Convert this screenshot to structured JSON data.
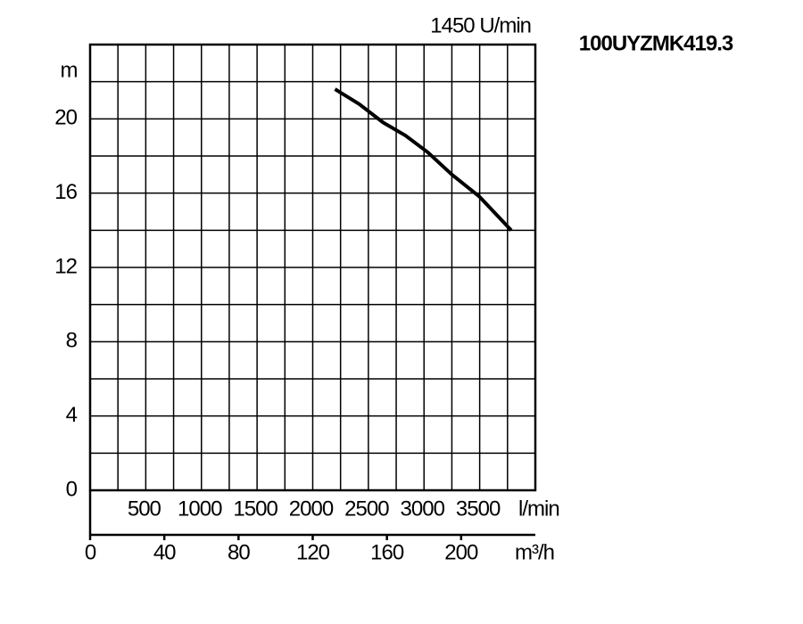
{
  "chart_data": {
    "type": "line",
    "title": "100UYZMK419.3",
    "subtitle": "1450 U/min",
    "y_label": "m",
    "x_label": "m³/h",
    "x2_label": "l/min",
    "x": [
      132,
      145,
      158,
      170,
      182,
      195,
      210,
      227
    ],
    "values": [
      21.6,
      20.8,
      19.8,
      19.1,
      18.2,
      17.0,
      15.8,
      14.0
    ],
    "color": "#000000",
    "xlim": [
      0,
      240
    ],
    "xticks": [
      0,
      40,
      80,
      120,
      160,
      200
    ],
    "x2lim": [
      0,
      4000
    ],
    "x2ticks": [
      500,
      1000,
      1500,
      2000,
      2500,
      3000,
      3500
    ],
    "ylim": [
      0,
      24
    ],
    "yticks": [
      0,
      4,
      8,
      12,
      16,
      20
    ],
    "grid": true
  }
}
